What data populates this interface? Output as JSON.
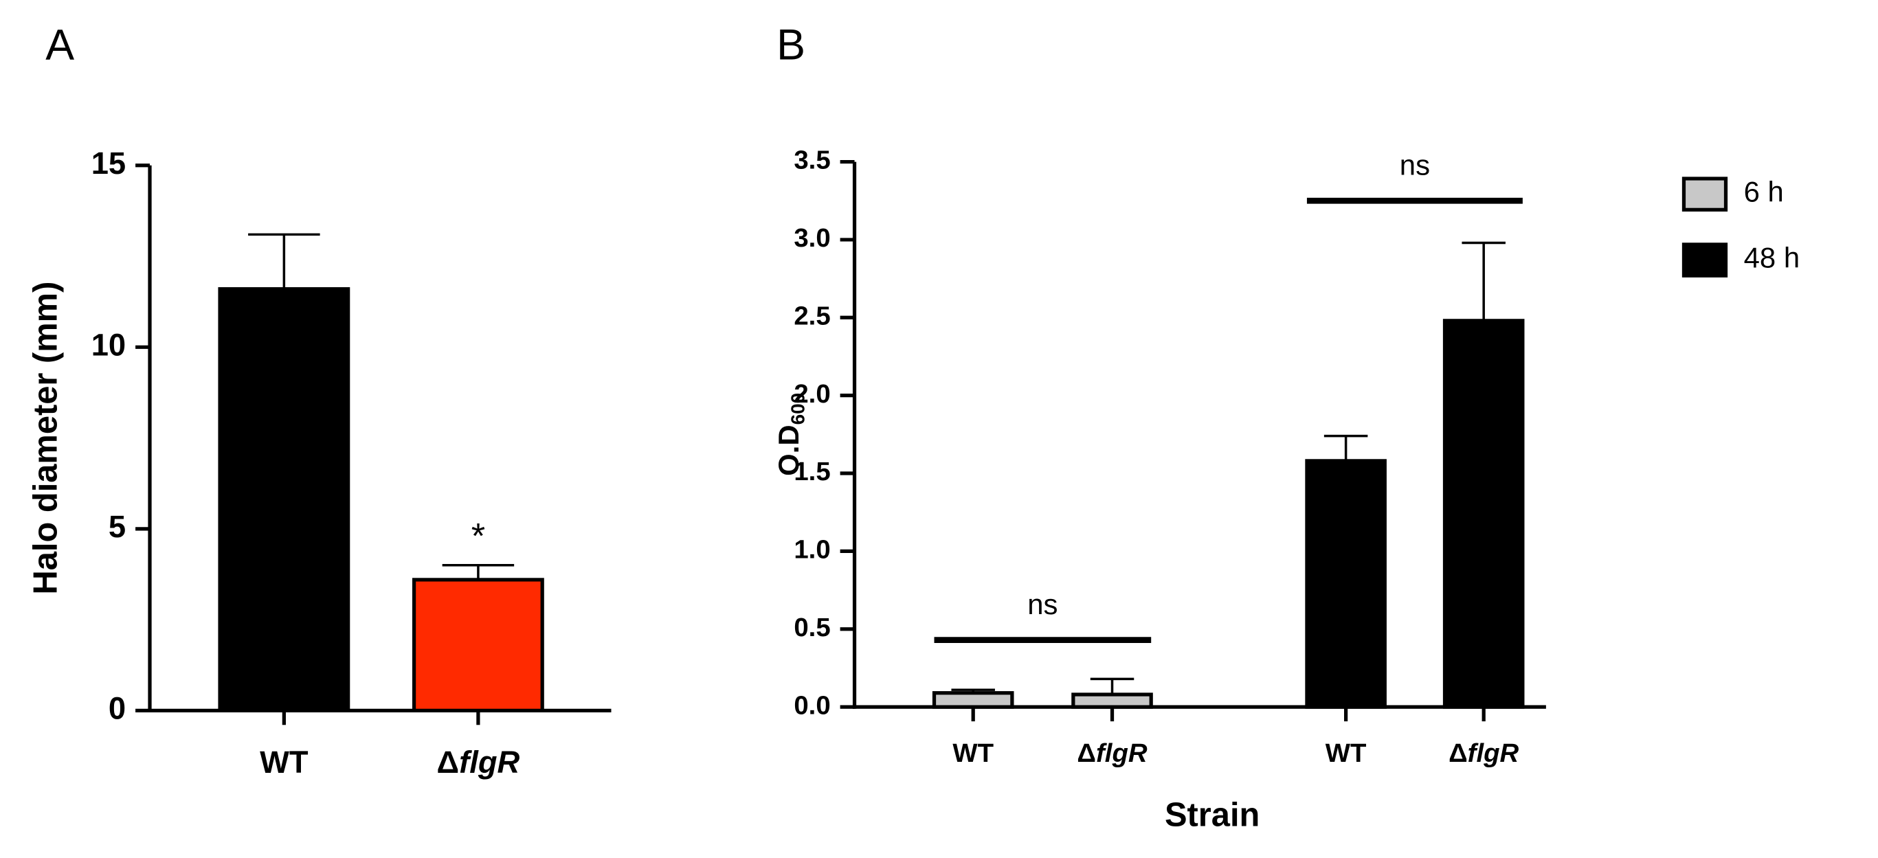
{
  "chart_data": [
    {
      "type": "bar",
      "panel": "A",
      "ylabel": "Halo diameter (mm)",
      "categories": [
        "WT",
        "ΔflgR"
      ],
      "values": [
        11.6,
        3.6
      ],
      "errors": [
        1.5,
        0.4
      ],
      "colors": [
        "#000000",
        "#ff2a00"
      ],
      "ylim": [
        0,
        15
      ],
      "yticks": [
        0,
        5,
        10,
        15
      ],
      "annotations": [
        {
          "text": "*",
          "category": 1
        }
      ]
    },
    {
      "type": "bar",
      "panel": "B",
      "ylabel": {
        "text": "O.D",
        "subscript": "600"
      },
      "xlabel": "Strain",
      "categories": [
        "WT",
        "ΔflgR",
        "WT",
        "ΔflgR"
      ],
      "series": [
        {
          "name": "6 h",
          "color": "#c8c8c8",
          "values": [
            0.09,
            0.08,
            null,
            null
          ],
          "errors": [
            0.02,
            0.1,
            null,
            null
          ]
        },
        {
          "name": "48 h",
          "color": "#000000",
          "values": [
            null,
            null,
            1.58,
            2.48
          ],
          "errors": [
            null,
            null,
            0.16,
            0.5
          ]
        }
      ],
      "ylim": [
        0,
        3.5
      ],
      "yticks": [
        {
          "value": 0,
          "label": "0.0"
        },
        0.5,
        {
          "value": 1,
          "label": "1.0"
        },
        1.5,
        {
          "value": 2,
          "label": "2.0"
        },
        2.5,
        {
          "value": 3,
          "label": "3.0"
        },
        3.5
      ],
      "annotations": [
        {
          "text": "ns",
          "y": 0.43,
          "from": 0,
          "to": 1
        },
        {
          "text": "ns",
          "y": 3.25,
          "from": 2,
          "to": 3
        }
      ]
    }
  ]
}
